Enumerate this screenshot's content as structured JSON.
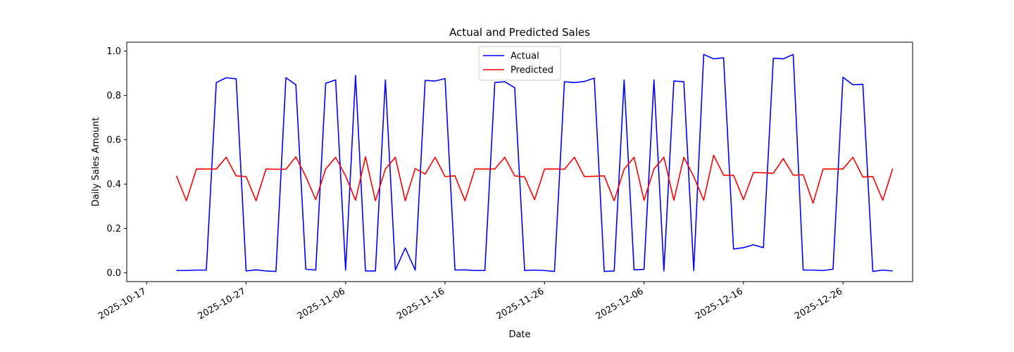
{
  "chart_data": {
    "type": "line",
    "title": "Actual and Predicted Sales",
    "xlabel": "Date",
    "ylabel": "Daily Sales Amount",
    "x_start": "2025-10-20",
    "x_step_days": 1,
    "xlim": [
      "2025-10-15",
      "2026-01-02"
    ],
    "ylim": [
      -0.04,
      1.04
    ],
    "x_ticks": [
      "2025-10-17",
      "2025-10-27",
      "2025-11-06",
      "2025-11-16",
      "2025-11-26",
      "2025-12-06",
      "2025-12-16",
      "2025-12-26"
    ],
    "y_ticks": [
      0.0,
      0.2,
      0.4,
      0.6,
      0.8,
      1.0
    ],
    "y_tick_labels": [
      "0.0",
      "0.2",
      "0.4",
      "0.6",
      "0.8",
      "1.0"
    ],
    "grid": false,
    "legend_position": "top-center",
    "series": [
      {
        "name": "Actual",
        "color": "#0000ff",
        "values": [
          0.01,
          0.01,
          0.012,
          0.012,
          0.858,
          0.88,
          0.875,
          0.008,
          0.013,
          0.008,
          0.006,
          0.88,
          0.848,
          0.016,
          0.012,
          0.855,
          0.87,
          0.012,
          0.89,
          0.008,
          0.008,
          0.87,
          0.012,
          0.112,
          0.012,
          0.868,
          0.865,
          0.876,
          0.012,
          0.013,
          0.01,
          0.01,
          0.858,
          0.862,
          0.835,
          0.01,
          0.012,
          0.01,
          0.006,
          0.862,
          0.858,
          0.863,
          0.878,
          0.006,
          0.008,
          0.87,
          0.013,
          0.015,
          0.87,
          0.008,
          0.865,
          0.862,
          0.01,
          0.985,
          0.965,
          0.97,
          0.107,
          0.113,
          0.126,
          0.113,
          0.968,
          0.965,
          0.985,
          0.012,
          0.012,
          0.01,
          0.016,
          0.882,
          0.848,
          0.85,
          0.006,
          0.012,
          0.008
        ]
      },
      {
        "name": "Predicted",
        "color": "#ff0000",
        "values": [
          0.437,
          0.325,
          0.468,
          0.468,
          0.468,
          0.521,
          0.437,
          0.434,
          0.325,
          0.468,
          0.467,
          0.467,
          0.523,
          0.434,
          0.33,
          0.468,
          0.521,
          0.437,
          0.327,
          0.523,
          0.325,
          0.468,
          0.521,
          0.325,
          0.47,
          0.445,
          0.521,
          0.434,
          0.437,
          0.325,
          0.468,
          0.468,
          0.468,
          0.521,
          0.437,
          0.432,
          0.33,
          0.468,
          0.468,
          0.467,
          0.521,
          0.434,
          0.435,
          0.437,
          0.325,
          0.467,
          0.521,
          0.327,
          0.468,
          0.521,
          0.327,
          0.521,
          0.434,
          0.327,
          0.53,
          0.44,
          0.44,
          0.33,
          0.452,
          0.451,
          0.449,
          0.515,
          0.44,
          0.442,
          0.314,
          0.468,
          0.468,
          0.468,
          0.521,
          0.432,
          0.434,
          0.327,
          0.47
        ]
      }
    ]
  }
}
